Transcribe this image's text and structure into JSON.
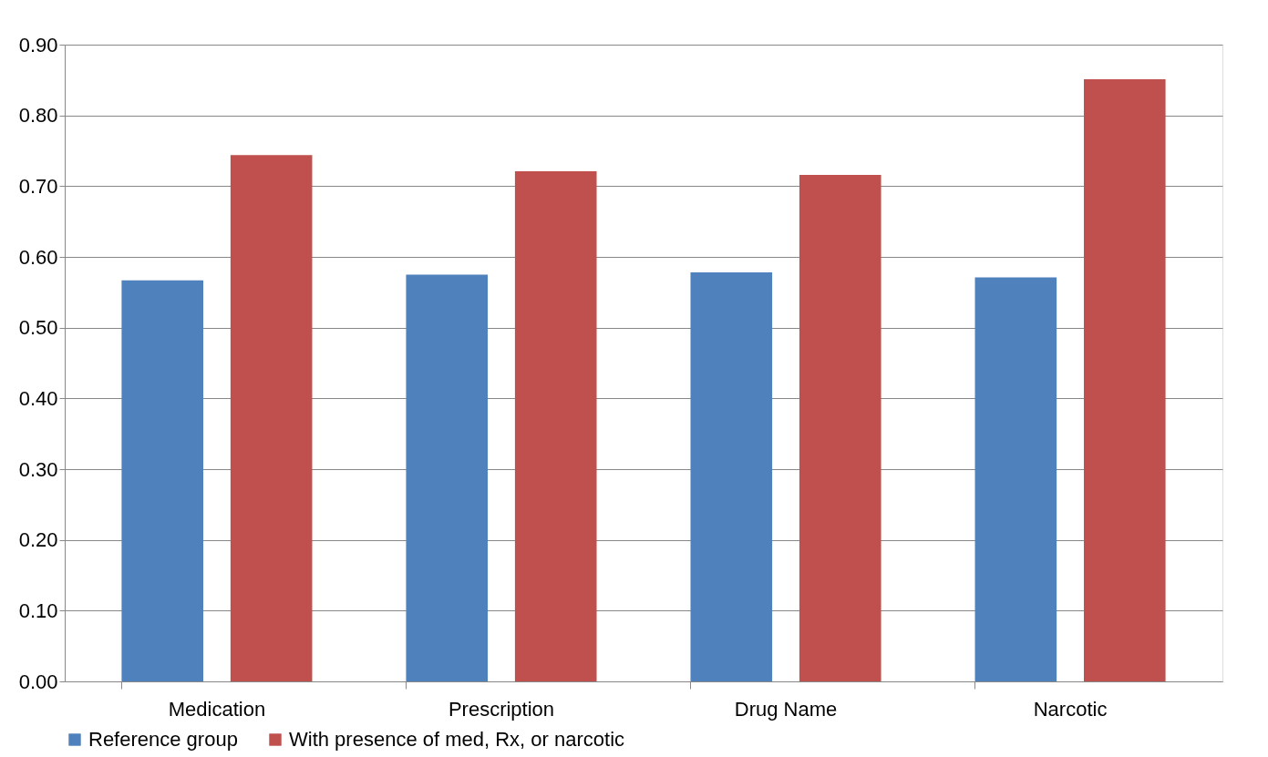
{
  "chart_data": {
    "type": "bar",
    "categories": [
      "Medication",
      "Prescription",
      "Drug Name",
      "Narcotic"
    ],
    "series": [
      {
        "name": "Reference group",
        "color": "#4f81bd",
        "values": [
          0.567,
          0.575,
          0.578,
          0.571
        ]
      },
      {
        "name": "With presence of med, Rx, or narcotic",
        "color": "#c0504d",
        "values": [
          0.744,
          0.721,
          0.716,
          0.851
        ]
      }
    ],
    "ylim": [
      0,
      0.9
    ],
    "yticks": [
      {
        "value": 0,
        "label": "0.00"
      },
      {
        "value": 0.1,
        "label": "0.10"
      },
      {
        "value": 0.2,
        "label": "0.20"
      },
      {
        "value": 0.3,
        "label": "0.30"
      },
      {
        "value": 0.4,
        "label": "0.40"
      },
      {
        "value": 0.5,
        "label": "0.50"
      },
      {
        "value": 0.6,
        "label": "0.60"
      },
      {
        "value": 0.7,
        "label": "0.70"
      },
      {
        "value": 0.8,
        "label": "0.80"
      },
      {
        "value": 0.9,
        "label": "0.90"
      }
    ],
    "grid": "y",
    "legend": "bottom"
  }
}
